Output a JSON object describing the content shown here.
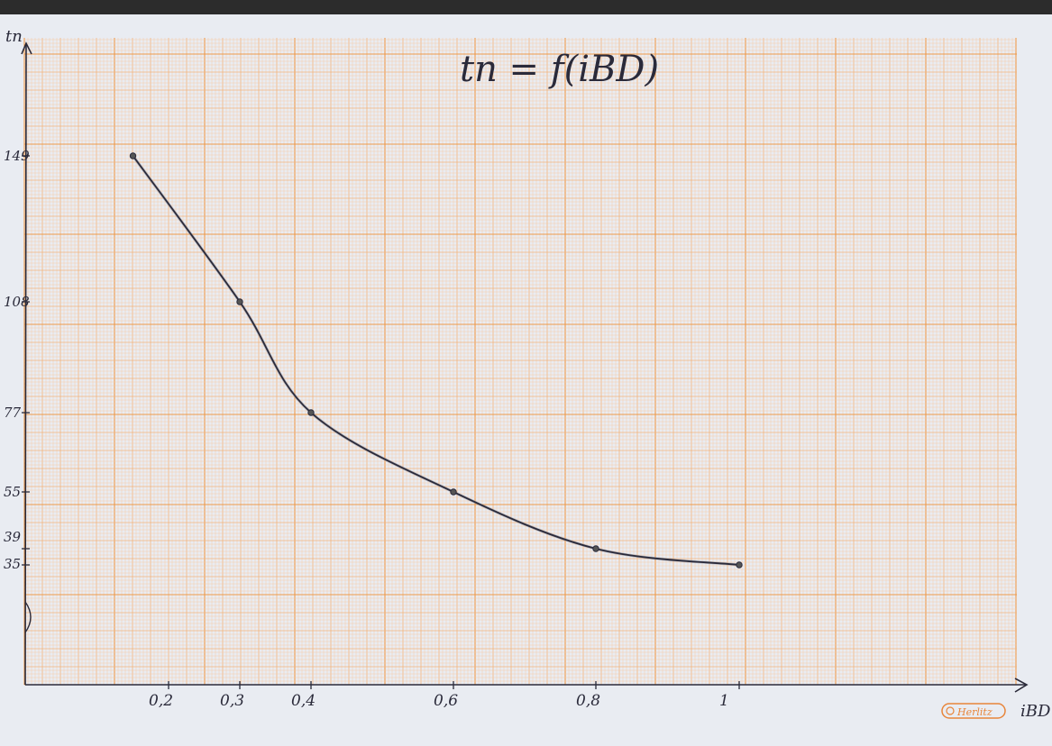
{
  "chart_data": {
    "type": "line",
    "title": "tn = f(iBD)",
    "xlabel": "iBD",
    "ylabel": "tn",
    "x_ticks": [
      "0,2",
      "0,3",
      "0,4",
      "0,6",
      "0,8",
      "1"
    ],
    "y_ticks": [
      "149",
      "108",
      "77",
      "55",
      "39",
      "35"
    ],
    "x_tick_values": [
      0.2,
      0.3,
      0.4,
      0.6,
      0.8,
      1.0
    ],
    "y_tick_values": [
      149,
      108,
      77,
      55,
      39,
      35
    ],
    "series": [
      {
        "x": [
          0.15,
          0.3,
          0.4,
          0.6,
          0.8,
          1.0
        ],
        "y": [
          149,
          108,
          77,
          55,
          39,
          35
        ]
      }
    ],
    "grid": true,
    "brand_mark": "Herlitz",
    "colors": {
      "grid_minor": "#f8c9a0",
      "grid_mid": "#f3b57c",
      "grid_major": "#ee9a4a",
      "ink": "#2a2a3a"
    }
  }
}
